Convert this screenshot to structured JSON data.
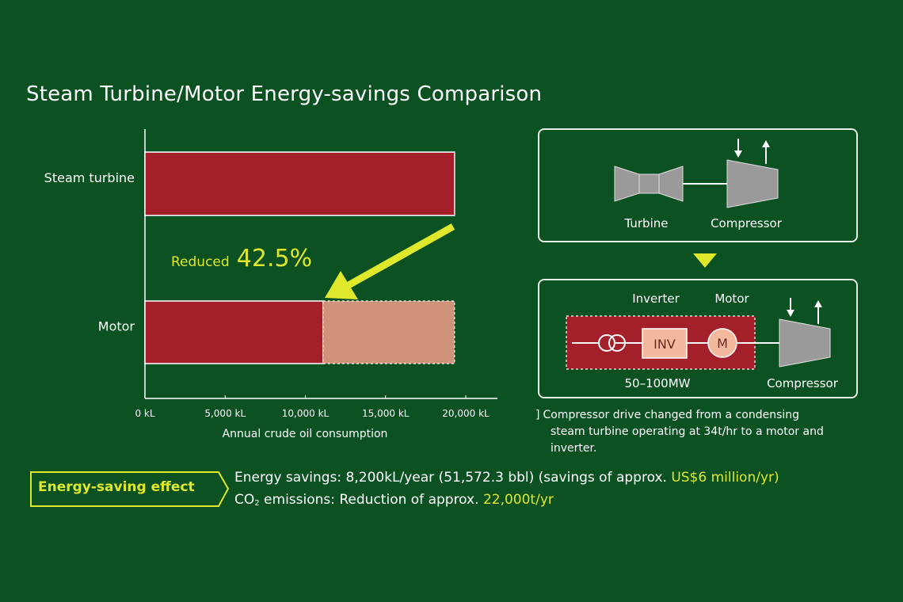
{
  "title": "Steam Turbine/Motor Energy-savings Comparison",
  "colors": {
    "background": "#0b5121",
    "bar_main": "#a3202b",
    "bar_saved": "#cf937a",
    "arrow": "#dfe82a",
    "highlight": "#dfe82a",
    "box_border": "#e8efe4",
    "machine_gray": "#9a9a9a"
  },
  "chart_data": {
    "type": "bar",
    "orientation": "horizontal",
    "categories": [
      "Steam turbine",
      "Motor"
    ],
    "series": [
      {
        "name": "Annual crude oil consumption",
        "values": [
          19300,
          11100
        ]
      },
      {
        "name": "Reduction",
        "values": [
          0,
          8200
        ]
      }
    ],
    "xlabel": "Annual crude oil consumption",
    "xlim": [
      0,
      21000
    ],
    "x_ticks": [
      0,
      5000,
      10000,
      15000,
      20000
    ],
    "x_tick_labels": [
      "0 kL",
      "5,000 kL",
      "10,000 kL",
      "15,000 kL",
      "20,000 kL"
    ],
    "annotation": {
      "prefix": "Reduced",
      "value": "42.5%"
    }
  },
  "diagram": {
    "top_box": {
      "turbine_label": "Turbine",
      "compressor_label": "Compressor"
    },
    "bottom_box": {
      "inverter_label": "Inverter",
      "motor_label": "Motor",
      "inv_text": "INV",
      "m_text": "M",
      "power_label": "50–100MW",
      "compressor_label": "Compressor"
    }
  },
  "note": {
    "mark": "]",
    "first_line": "Compressor drive changed from a condensing",
    "rest": "steam turbine operating at 34t/hr to a motor and inverter."
  },
  "effect": {
    "label": "Energy-saving effect",
    "line1_text": "Energy savings: 8,200kL/year (51,572.3 bbl) (savings of approx. ",
    "line1_highlight": "US$6 million/yr)",
    "line2_pre": "CO",
    "line2_sub": "2",
    "line2_text": " emissions: Reduction of approx. ",
    "line2_highlight": "22,000t/yr"
  }
}
